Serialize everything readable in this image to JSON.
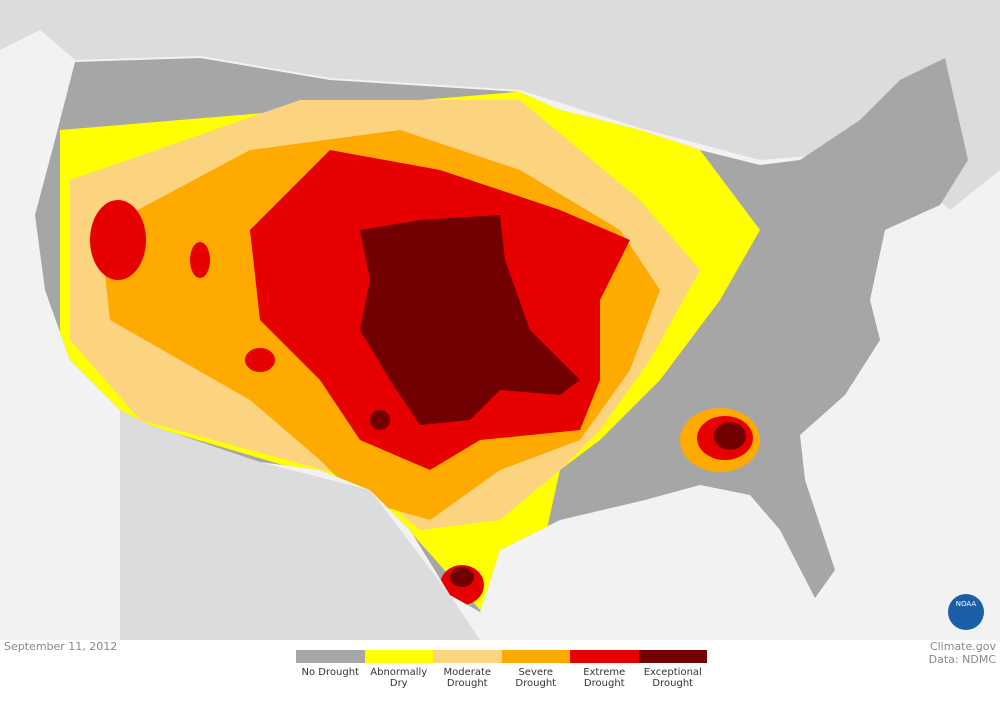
{
  "map": {
    "date": "September 11, 2012",
    "legend": {
      "items": [
        {
          "label": "No Drought",
          "color": "#a6a6a6"
        },
        {
          "label": "Abnormally Dry",
          "color": "#ffff00"
        },
        {
          "label": "Moderate Drought",
          "color": "#fcd37f"
        },
        {
          "label": "Severe Drought",
          "color": "#ffaa00"
        },
        {
          "label": "Extreme Drought",
          "color": "#e60000"
        },
        {
          "label": "Exceptional Drought",
          "color": "#730000"
        }
      ]
    },
    "credits": [
      "Climate.gov",
      "Data: NDMC"
    ],
    "logo": "NOAA"
  }
}
